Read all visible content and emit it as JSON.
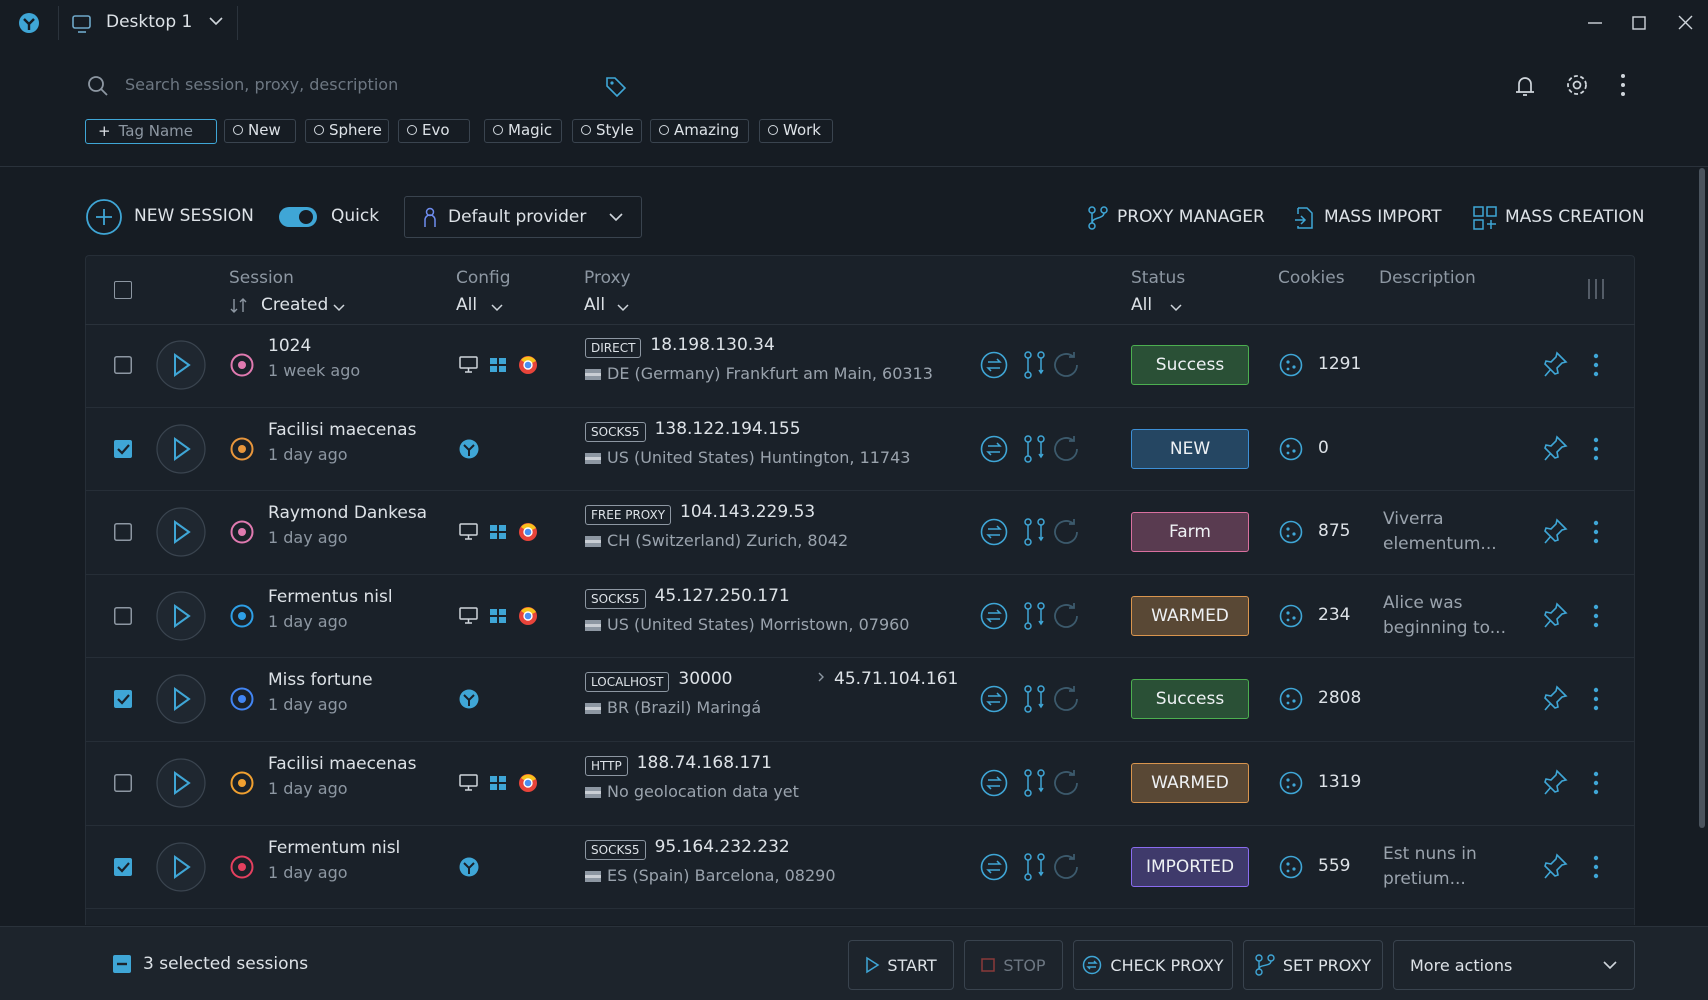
{
  "window": {
    "title": "Desktop 1"
  },
  "search": {
    "placeholder": "Search session, proxy, description"
  },
  "tags": {
    "add": "Tag Name",
    "items": [
      "New",
      "Sphere",
      "Evo",
      "Magic",
      "Style",
      "Amazing",
      "Work"
    ]
  },
  "toolbar": {
    "new_session": "NEW SESSION",
    "quick": "Quick",
    "provider": "Default provider",
    "proxy_manager": "PROXY MANAGER",
    "mass_import": "MASS IMPORT",
    "mass_creation": "MASS CREATION"
  },
  "table": {
    "columns": {
      "session": "Session",
      "sort": "Created",
      "config": "Config",
      "config_filter": "All",
      "proxy": "Proxy",
      "proxy_filter": "All",
      "status": "Status",
      "status_filter": "All",
      "cookies": "Cookies",
      "description": "Description"
    },
    "rows": [
      {
        "name": "1024",
        "time": "1 week ago",
        "checked": false,
        "icon_color": "#e07ab0",
        "web": false,
        "proxy_type": "DIRECT",
        "proxy": "18.198.130.34",
        "location": "DE (Germany) Frankfurt am Main, 60313",
        "status": {
          "label": "Success",
          "color": "#4caf50"
        },
        "cookies": 1291
      },
      {
        "name": "Facilisi maecenas",
        "time": "1 day ago",
        "checked": true,
        "icon_color": "#e8963c",
        "web": true,
        "proxy_type": "SOCKS5",
        "proxy": "138.122.194.155",
        "location": "US (United States) Huntington, 11743",
        "status": {
          "label": "NEW",
          "color": "#3d8fd6"
        },
        "cookies": 0
      },
      {
        "name": "Raymond Dankesa",
        "time": "1 day ago",
        "checked": false,
        "icon_color": "#e07ab0",
        "web": false,
        "proxy_type": "FREE PROXY",
        "proxy": "104.143.229.53",
        "location": "CH (Switzerland) Zurich, 8042",
        "status": {
          "label": "Farm",
          "color": "#d9709f"
        },
        "cookies": 875,
        "description": "Viverra elementum..."
      },
      {
        "name": "Fermentus nisl",
        "time": "1 day ago",
        "checked": false,
        "icon_color": "#2e9fe6",
        "web": false,
        "proxy_type": "SOCKS5",
        "proxy": "45.127.250.171",
        "location": "US (United States) Morristown, 07960",
        "status": {
          "label": "WARMED",
          "color": "#d9954e"
        },
        "cookies": 234,
        "description": "Alice was beginning to..."
      },
      {
        "name": "Miss fortune",
        "time": "1 day ago",
        "checked": true,
        "icon_color": "#4285f4",
        "web": true,
        "proxy_type": "LOCALHOST",
        "proxy": "30000",
        "proxy_target": "45.71.104.161",
        "location": "BR (Brazil) Maringá",
        "status": {
          "label": "Success",
          "color": "#4caf50"
        },
        "cookies": 2808
      },
      {
        "name": "Facilisi maecenas",
        "time": "1 day ago",
        "checked": false,
        "icon_color": "#f0a030",
        "web": false,
        "proxy_type": "HTTP",
        "proxy": "188.74.168.171",
        "location": "No geolocation data yet",
        "status": {
          "label": "WARMED",
          "color": "#d9954e"
        },
        "cookies": 1319
      },
      {
        "name": "Fermentum nisl",
        "time": "1 day ago",
        "checked": true,
        "icon_color": "#e4405f",
        "web": true,
        "proxy_type": "SOCKS5",
        "proxy": "95.164.232.232",
        "location": "ES (Spain) Barcelona, 08290",
        "status": {
          "label": "IMPORTED",
          "color": "#8a6cf0"
        },
        "cookies": 559,
        "description": "Est nuns in pretium..."
      }
    ]
  },
  "footer": {
    "selected": "3 selected sessions",
    "start": "START",
    "stop": "STOP",
    "check_proxy": "CHECK PROXY",
    "set_proxy": "SET PROXY",
    "more": "More actions"
  }
}
